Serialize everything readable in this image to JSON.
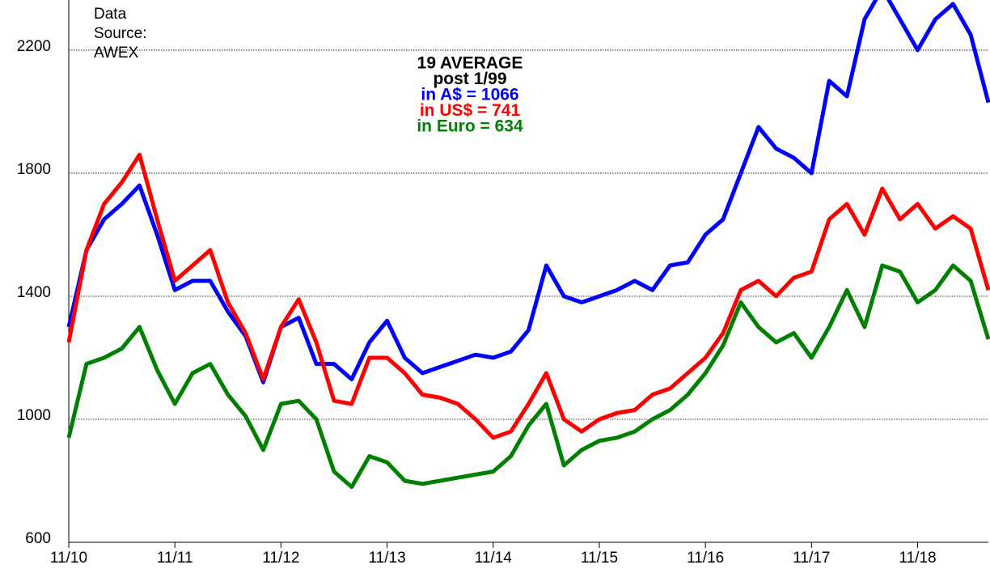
{
  "chart_data": {
    "type": "line",
    "x": [
      "2010-11",
      "2011-01",
      "2011-03",
      "2011-05",
      "2011-07",
      "2011-09",
      "2011-11",
      "2012-01",
      "2012-03",
      "2012-05",
      "2012-07",
      "2012-09",
      "2012-11",
      "2013-01",
      "2013-03",
      "2013-05",
      "2013-07",
      "2013-09",
      "2013-11",
      "2014-01",
      "2014-03",
      "2014-05",
      "2014-07",
      "2014-09",
      "2014-11",
      "2015-01",
      "2015-03",
      "2015-05",
      "2015-07",
      "2015-09",
      "2015-11",
      "2016-01",
      "2016-03",
      "2016-05",
      "2016-07",
      "2016-09",
      "2016-11",
      "2017-01",
      "2017-03",
      "2017-05",
      "2017-07",
      "2017-09",
      "2017-11",
      "2018-01",
      "2018-03",
      "2018-05",
      "2018-07",
      "2018-09",
      "2018-11",
      "2019-01",
      "2019-03",
      "2019-05",
      "2019-07"
    ],
    "series": [
      {
        "color": "#0000ff",
        "values": [
          1300,
          1550,
          1650,
          1700,
          1760,
          1600,
          1420,
          1450,
          1450,
          1350,
          1270,
          1120,
          1300,
          1330,
          1180,
          1180,
          1130,
          1250,
          1320,
          1200,
          1150,
          1170,
          1190,
          1210,
          1200,
          1220,
          1290,
          1500,
          1400,
          1380,
          1400,
          1420,
          1450,
          1420,
          1500,
          1510,
          1600,
          1650,
          1800,
          1950,
          1880,
          1850,
          1800,
          2100,
          2050,
          2300,
          2400,
          2300,
          2200,
          2300,
          2350,
          2250,
          2030
        ]
      },
      {
        "color": "#ff0000",
        "values": [
          1250,
          1550,
          1700,
          1770,
          1860,
          1650,
          1450,
          1500,
          1550,
          1380,
          1280,
          1130,
          1300,
          1390,
          1250,
          1060,
          1050,
          1200,
          1200,
          1150,
          1080,
          1070,
          1050,
          1000,
          940,
          960,
          1050,
          1150,
          1000,
          960,
          1000,
          1020,
          1030,
          1080,
          1100,
          1150,
          1200,
          1280,
          1420,
          1450,
          1400,
          1460,
          1480,
          1650,
          1700,
          1600,
          1750,
          1650,
          1700,
          1620,
          1660,
          1620,
          1420
        ]
      },
      {
        "color": "#008000",
        "values": [
          940,
          1180,
          1200,
          1230,
          1300,
          1160,
          1050,
          1150,
          1180,
          1080,
          1010,
          900,
          1050,
          1060,
          1000,
          830,
          780,
          880,
          860,
          800,
          790,
          800,
          810,
          820,
          830,
          880,
          980,
          1050,
          850,
          900,
          930,
          940,
          960,
          1000,
          1030,
          1080,
          1150,
          1240,
          1380,
          1300,
          1250,
          1280,
          1200,
          1300,
          1420,
          1300,
          1500,
          1480,
          1380,
          1420,
          1500,
          1450,
          1260
        ]
      }
    ],
    "xlim": [
      "2010-11",
      "2019-07"
    ],
    "xticks": [
      {
        "value": "2010-11",
        "label": "11/10"
      },
      {
        "value": "2011-11",
        "label": "11/11"
      },
      {
        "value": "2012-11",
        "label": "11/12"
      },
      {
        "value": "2013-11",
        "label": "11/13"
      },
      {
        "value": "2014-11",
        "label": "11/14"
      },
      {
        "value": "2015-11",
        "label": "11/15"
      },
      {
        "value": "2016-11",
        "label": "11/16"
      },
      {
        "value": "2017-11",
        "label": "11/17"
      },
      {
        "value": "2018-11",
        "label": "11/18"
      }
    ],
    "ylim": [
      600,
      2363
    ],
    "yticks": [
      600,
      1000,
      1400,
      1800,
      2200
    ],
    "grid": true,
    "source_note": [
      "Data",
      "Source:",
      "AWEX"
    ],
    "annotation": [
      {
        "text": "19 AVERAGE",
        "color": "#000000"
      },
      {
        "text": "post 1/99",
        "color": "#000000"
      },
      {
        "text": "in A$ = 1066",
        "color": "#0000ff"
      },
      {
        "text": "in US$ = 741",
        "color": "#ff0000"
      },
      {
        "text": "in Euro = 634",
        "color": "#008000"
      }
    ]
  }
}
